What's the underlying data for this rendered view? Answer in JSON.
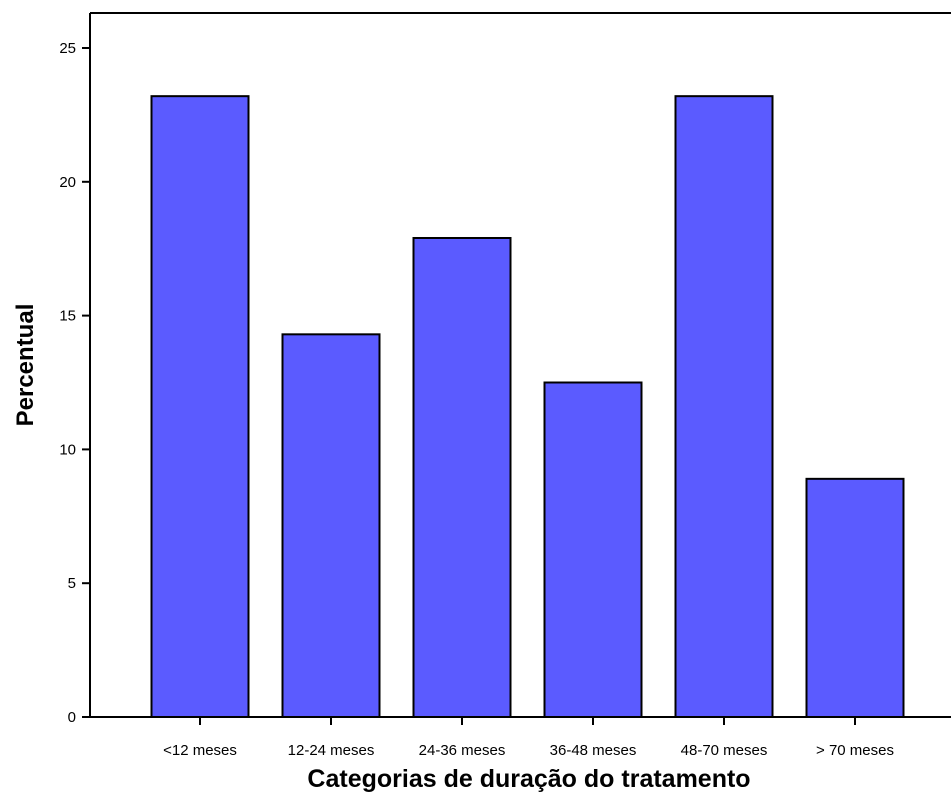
{
  "chart_data": {
    "type": "bar",
    "categories": [
      "<12 meses",
      "12-24 meses",
      "24-36 meses",
      "36-48 meses",
      "48-70 meses",
      "> 70 meses"
    ],
    "values": [
      23.2,
      14.3,
      17.9,
      12.5,
      23.2,
      8.9
    ],
    "title": "",
    "xlabel": "Categorias de duração do tratamento",
    "ylabel": "Percentual",
    "ylim": [
      0,
      25
    ],
    "yticks": [
      0,
      5,
      10,
      15,
      20,
      25
    ],
    "grid": false,
    "bar_color": "#5b5bff",
    "bar_edge_color": "#000000"
  }
}
